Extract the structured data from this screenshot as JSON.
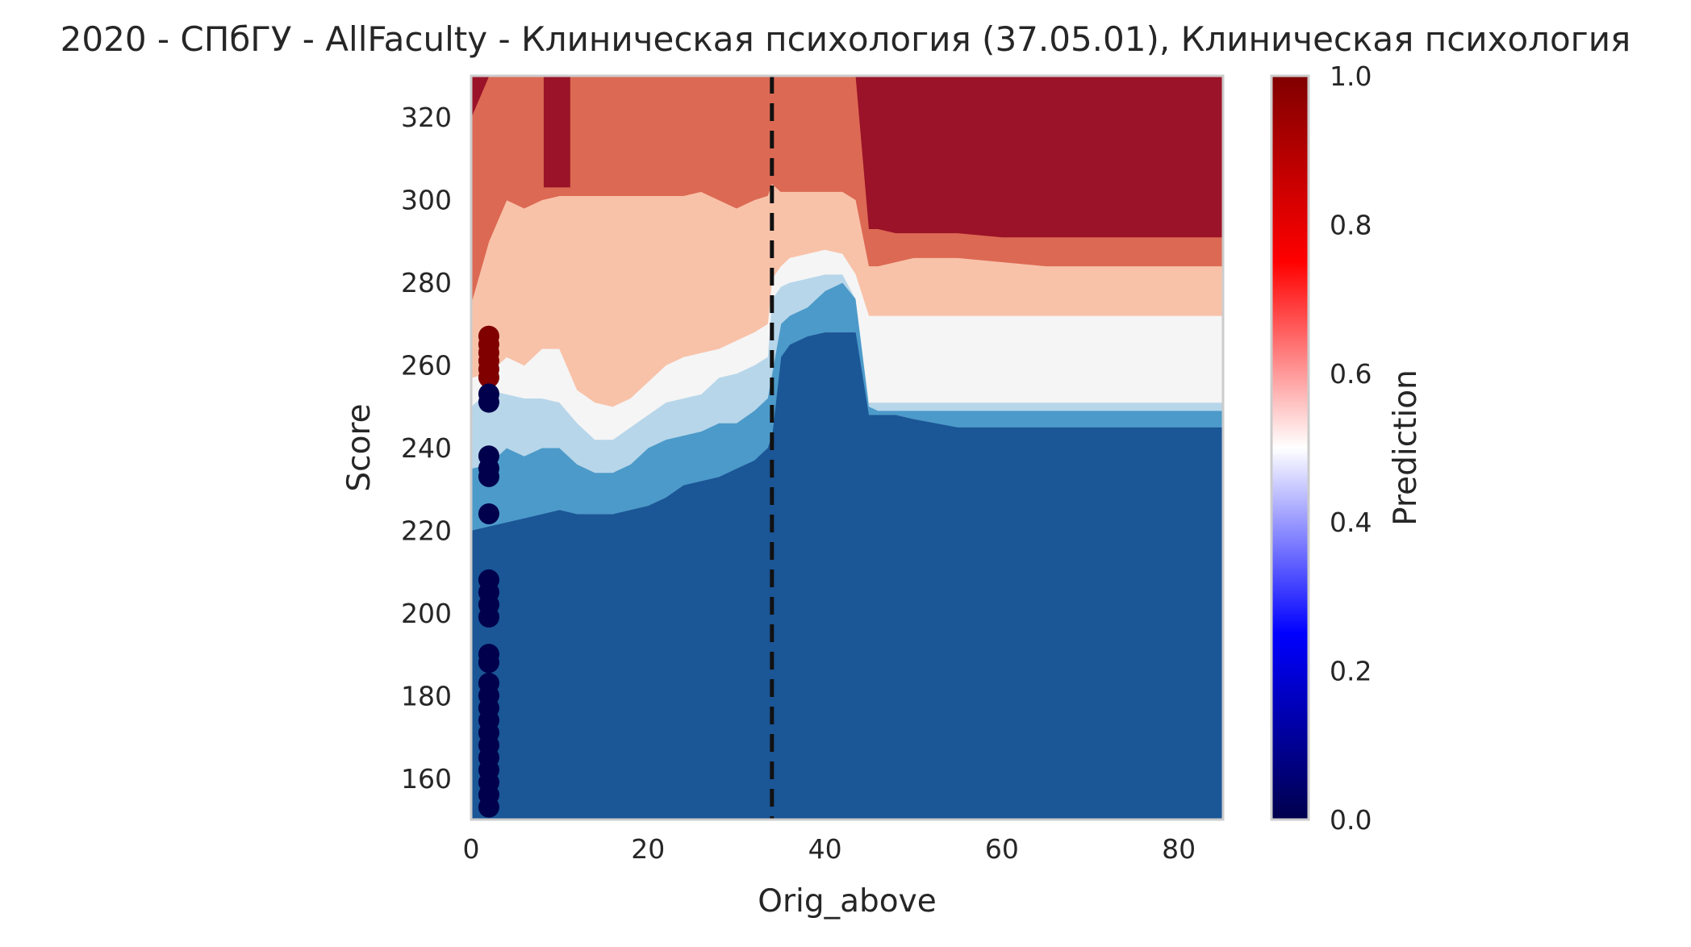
{
  "chart_data": {
    "type": "heatmap",
    "title": "2020 - СПбГУ - AllFaculty - Клиническая психология (37.05.01), Клиническая психология",
    "xlabel": "Orig_above",
    "ylabel": "Score",
    "xlim": [
      0,
      85
    ],
    "ylim": [
      150,
      330
    ],
    "x_ticks": [
      "0",
      "20",
      "40",
      "60",
      "80"
    ],
    "y_ticks": [
      "160",
      "180",
      "200",
      "220",
      "240",
      "260",
      "280",
      "300",
      "320"
    ],
    "colorbar": {
      "label": "Prediction",
      "range": [
        0,
        1
      ],
      "ticks": [
        "0.0",
        "0.2",
        "0.4",
        "0.6",
        "0.8",
        "1.0"
      ],
      "colormap": "seismic",
      "colors": [
        "#00004c",
        "#0000ff",
        "#ffffff",
        "#ff0000",
        "#800000"
      ]
    },
    "threshold_line": {
      "x": 34,
      "style": "dashed",
      "color": "#111111"
    },
    "contour_levels": {
      "colors": [
        "#1b5696",
        "#4c9ac9",
        "#b7d6ea",
        "#f5f5f5",
        "#f8c2a9",
        "#dc6953",
        "#9b1328"
      ],
      "boundaries": {
        "x": [
          0.5,
          2,
          4,
          6,
          8,
          10,
          12,
          14,
          16,
          18,
          20,
          22,
          24,
          26,
          28,
          30,
          32,
          33.5,
          34,
          35,
          36,
          38,
          40,
          42,
          43.5,
          45,
          46,
          48,
          50,
          55,
          60,
          65,
          70,
          75,
          80,
          85
        ],
        "b1": [
          220,
          221,
          222,
          223,
          224,
          225,
          224,
          224,
          224,
          225,
          226,
          228,
          231,
          232,
          233,
          235,
          237,
          240,
          243,
          262,
          265,
          267,
          268,
          268,
          268,
          248,
          248,
          248,
          247,
          245,
          245,
          245,
          245,
          245,
          245,
          245
        ],
        "b2": [
          235,
          236,
          240,
          238,
          240,
          240,
          236,
          234,
          234,
          236,
          240,
          242,
          243,
          244,
          246,
          246,
          249,
          252,
          258,
          270,
          272,
          274,
          278,
          280,
          276,
          250,
          249,
          249,
          249,
          249,
          249,
          249,
          249,
          249,
          249,
          249
        ],
        "b3": [
          250,
          254,
          253,
          252,
          252,
          251,
          246,
          242,
          242,
          245,
          248,
          251,
          252,
          253,
          257,
          258,
          260,
          262,
          276,
          279,
          280,
          281,
          282,
          282,
          276,
          251,
          251,
          251,
          251,
          251,
          251,
          251,
          251,
          251,
          251,
          251
        ],
        "b4": [
          257,
          258,
          262,
          260,
          264,
          264,
          254,
          251,
          250,
          252,
          256,
          260,
          262,
          263,
          264,
          266,
          268,
          270,
          281,
          284,
          286,
          287,
          288,
          287,
          282,
          272,
          272,
          272,
          272,
          272,
          272,
          272,
          272,
          272,
          272,
          272
        ],
        "b5": [
          275,
          290,
          300,
          298,
          300,
          301,
          301,
          301,
          301,
          301,
          301,
          301,
          301,
          302,
          300,
          298,
          300,
          301,
          304,
          302,
          302,
          302,
          302,
          302,
          300,
          284,
          284,
          285,
          286,
          286,
          285,
          284,
          284,
          284,
          284,
          284
        ],
        "b6": [
          320,
          330,
          330,
          330,
          330,
          330,
          330,
          330,
          330,
          330,
          330,
          330,
          330,
          330,
          330,
          330,
          330,
          330,
          330,
          330,
          330,
          330,
          330,
          330,
          330,
          293,
          293,
          292,
          292,
          292,
          291,
          291,
          291,
          291,
          291,
          291
        ]
      },
      "extra_dark_red_region": {
        "x": [
          8.2,
          11.2
        ],
        "y_from": 303,
        "y_to": 330
      }
    },
    "scatter": {
      "x": 2,
      "points": [
        {
          "y": 267,
          "value": 1
        },
        {
          "y": 265,
          "value": 1
        },
        {
          "y": 263,
          "value": 1
        },
        {
          "y": 261,
          "value": 1
        },
        {
          "y": 259,
          "value": 1
        },
        {
          "y": 257,
          "value": 1
        },
        {
          "y": 253,
          "value": 0
        },
        {
          "y": 251,
          "value": 0
        },
        {
          "y": 238,
          "value": 0
        },
        {
          "y": 235,
          "value": 0
        },
        {
          "y": 233,
          "value": 0
        },
        {
          "y": 224,
          "value": 0
        },
        {
          "y": 208,
          "value": 0
        },
        {
          "y": 205,
          "value": 0
        },
        {
          "y": 202,
          "value": 0
        },
        {
          "y": 199,
          "value": 0
        },
        {
          "y": 190,
          "value": 0
        },
        {
          "y": 188,
          "value": 0
        },
        {
          "y": 183,
          "value": 0
        },
        {
          "y": 180,
          "value": 0
        },
        {
          "y": 177,
          "value": 0
        },
        {
          "y": 174,
          "value": 0
        },
        {
          "y": 171,
          "value": 0
        },
        {
          "y": 168,
          "value": 0
        },
        {
          "y": 165,
          "value": 0
        },
        {
          "y": 162,
          "value": 0
        },
        {
          "y": 159,
          "value": 0
        },
        {
          "y": 156,
          "value": 0
        },
        {
          "y": 153,
          "value": 0
        }
      ]
    }
  }
}
